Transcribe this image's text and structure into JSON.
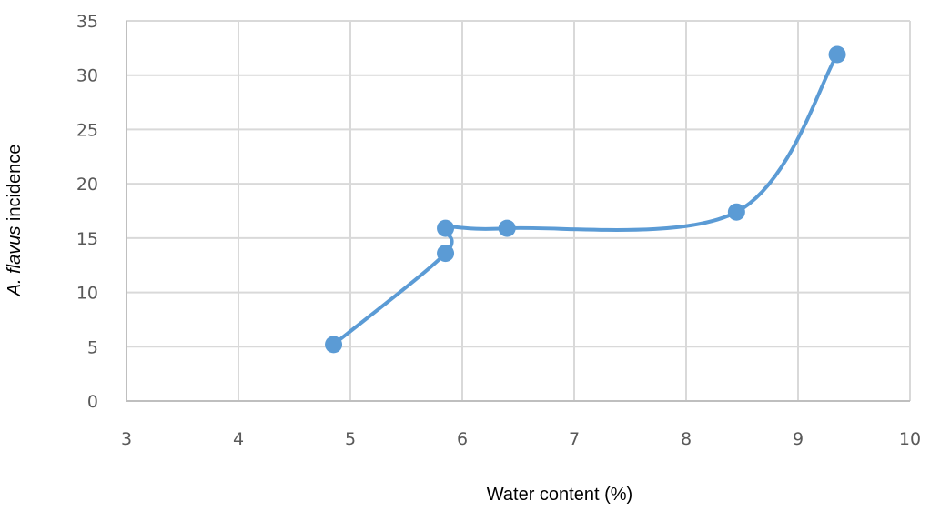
{
  "chart_data": {
    "type": "scatter",
    "xlabel": "Water content (%)",
    "ylabel": {
      "species": "A.  flavus",
      "rest": " incidence"
    },
    "xlim": [
      3,
      10
    ],
    "ylim": [
      0,
      35
    ],
    "x_ticks": [
      3,
      4,
      5,
      6,
      7,
      8,
      9,
      10
    ],
    "y_ticks": [
      0,
      5,
      10,
      15,
      20,
      25,
      30,
      35
    ],
    "grid": true,
    "legend": "none",
    "series": [
      {
        "color": "#5b9bd5",
        "smooth": true,
        "points": [
          {
            "x": 4.85,
            "y": 5.2
          },
          {
            "x": 5.85,
            "y": 13.6
          },
          {
            "x": 5.85,
            "y": 15.9
          },
          {
            "x": 6.4,
            "y": 15.9
          },
          {
            "x": 8.45,
            "y": 17.4
          },
          {
            "x": 9.35,
            "y": 31.9
          }
        ]
      }
    ]
  }
}
